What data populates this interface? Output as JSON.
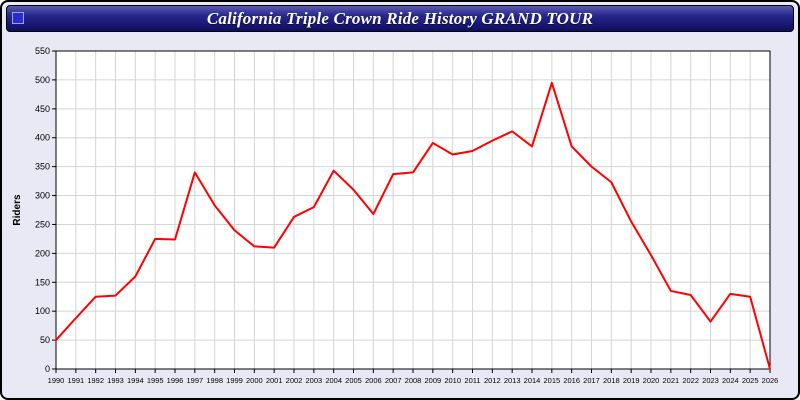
{
  "window": {
    "title": "California Triple Crown Ride History GRAND TOUR"
  },
  "chart_data": {
    "type": "line",
    "title": "California Triple Crown Ride History GRAND TOUR",
    "xlabel": "",
    "ylabel": "Riders",
    "ylim": [
      0,
      550
    ],
    "y_tick_step": 50,
    "grid": true,
    "legend": "none",
    "line_color": "#ff0000",
    "grid_color": "#d4d4d4",
    "plot_bg": "#ffffff",
    "page_bg": "#e9e9f6",
    "categories": [
      1990,
      1991,
      1992,
      1993,
      1994,
      1995,
      1996,
      1997,
      1998,
      1999,
      2000,
      2001,
      2002,
      2003,
      2004,
      2005,
      2006,
      2007,
      2008,
      2009,
      2010,
      2011,
      2012,
      2013,
      2014,
      2015,
      2016,
      2017,
      2018,
      2019,
      2020,
      2021,
      2022,
      2023,
      2024,
      2025,
      2026
    ],
    "series": [
      {
        "name": "Riders",
        "values": [
          50,
          88,
          125,
          127,
          160,
          225,
          224,
          340,
          283,
          240,
          212,
          210,
          263,
          280,
          343,
          310,
          268,
          337,
          340,
          391,
          371,
          377,
          395,
          411,
          385,
          495,
          385,
          350,
          323,
          255,
          197,
          135,
          128,
          82,
          130,
          125,
          0
        ]
      }
    ]
  }
}
